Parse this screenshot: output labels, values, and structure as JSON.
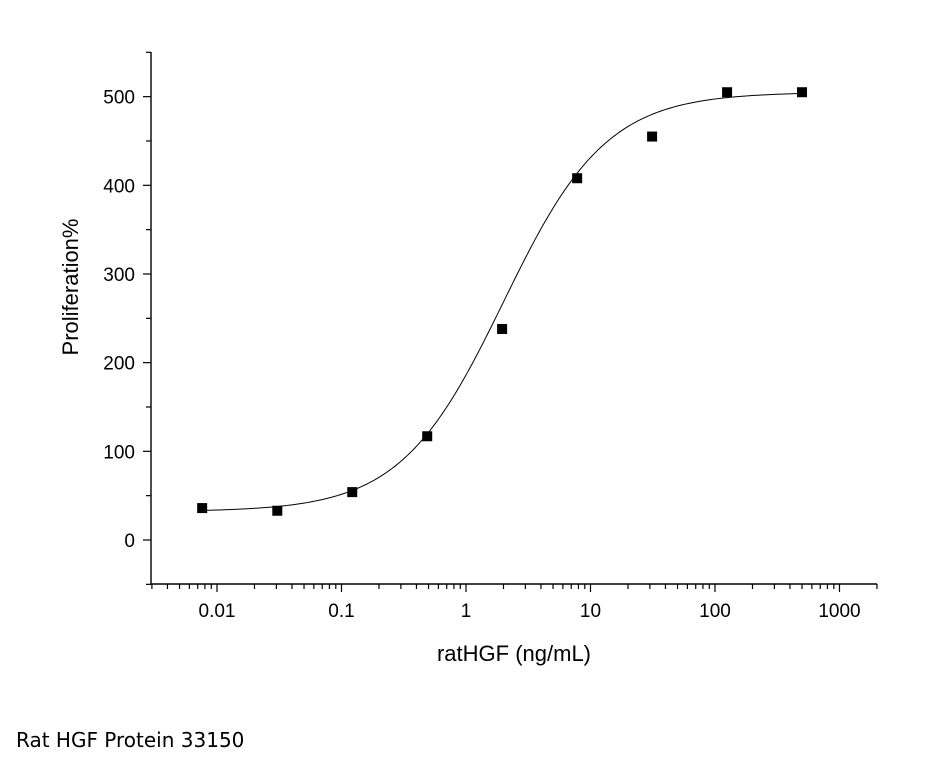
{
  "caption": "Rat HGF Protein 33150",
  "chart_data": {
    "type": "scatter",
    "xlabel": "ratHGF (ng/mL)",
    "ylabel": "Proliferation%",
    "xscale": "log",
    "xlim": [
      0.003,
      2000
    ],
    "ylim": [
      -50,
      550
    ],
    "x_ticks": [
      0.01,
      0.1,
      1,
      10,
      100,
      1000
    ],
    "x_tick_labels": [
      "0.01",
      "0.1",
      "1",
      "10",
      "100",
      "1000"
    ],
    "y_ticks": [
      0,
      100,
      200,
      300,
      400,
      500
    ],
    "y_tick_labels": [
      "0",
      "100",
      "200",
      "300",
      "400",
      "500"
    ],
    "grid": false,
    "marker": "square",
    "series": [
      {
        "x": [
          0.0076,
          0.0305,
          0.122,
          0.488,
          1.95,
          7.81,
          31.25,
          125,
          500
        ],
        "y": [
          36,
          33,
          54,
          117,
          238,
          408,
          455,
          505,
          505
        ]
      }
    ],
    "fit": {
      "type": "four-parameter-logistic",
      "bottom": 32,
      "top": 505,
      "ec50": 2.0,
      "hill": 1.05
    }
  }
}
